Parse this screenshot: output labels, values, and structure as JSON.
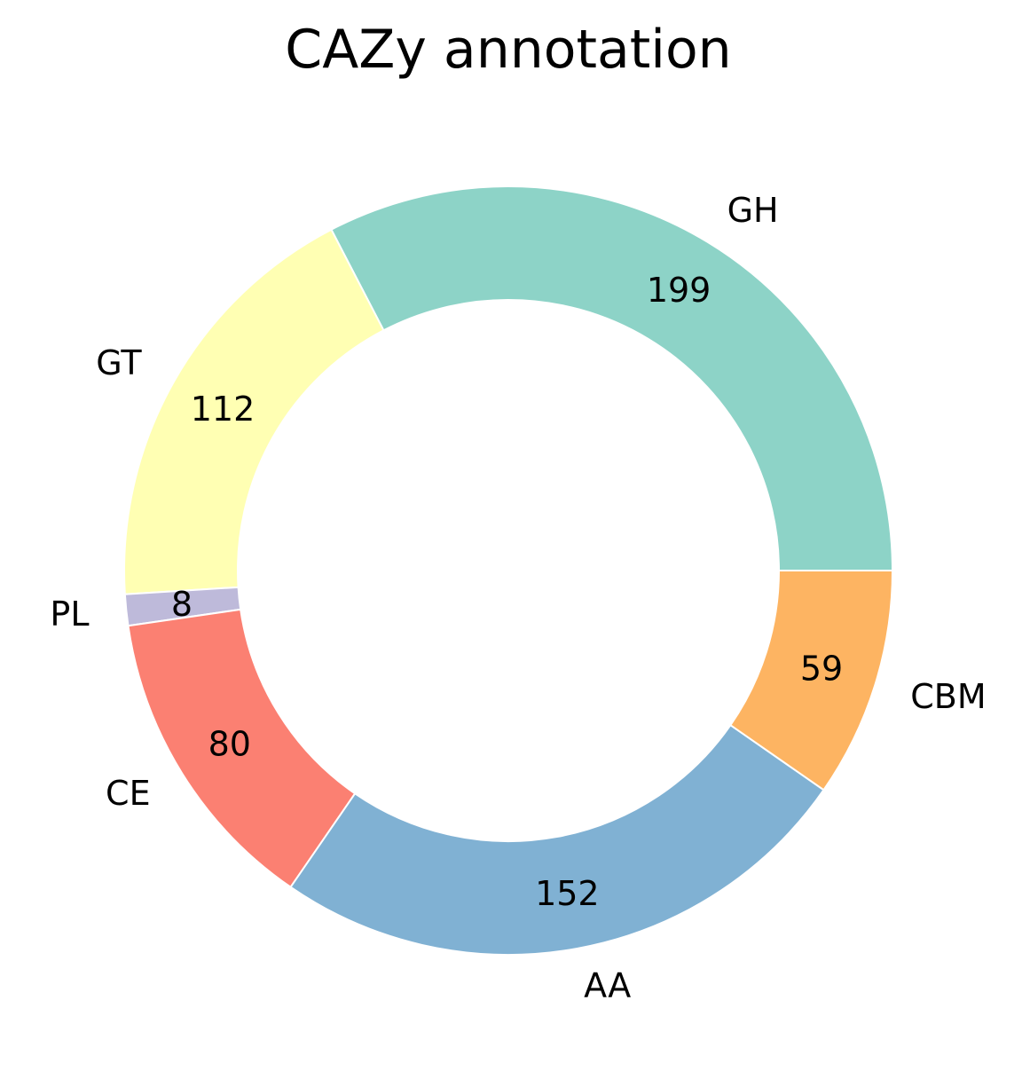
{
  "chart_data": {
    "type": "pie",
    "donut": true,
    "title": "CAZy annotation",
    "start_angle_deg": 0,
    "direction": "counterclockwise",
    "legend": "none",
    "slices": [
      {
        "label": "GH",
        "value": 199,
        "color": "#8dd3c7"
      },
      {
        "label": "GT",
        "value": 112,
        "color": "#ffffb3"
      },
      {
        "label": "PL",
        "value": 8,
        "color": "#bebada"
      },
      {
        "label": "CE",
        "value": 80,
        "color": "#fb8072"
      },
      {
        "label": "AA",
        "value": 152,
        "color": "#80b1d3"
      },
      {
        "label": "CBM",
        "value": 59,
        "color": "#fdb462"
      }
    ]
  }
}
